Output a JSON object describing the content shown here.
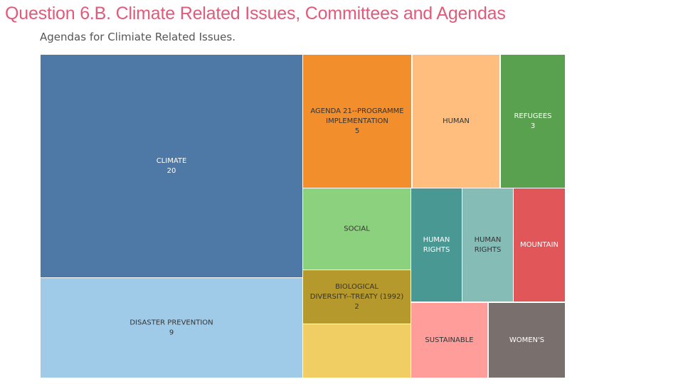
{
  "slide_title": "Question 6.B. Climate Related Issues, Committees and Agendas",
  "colors": {
    "title": "#e05a7a",
    "subtitle": "#555555"
  },
  "chart_data": {
    "type": "treemap",
    "subtitle": "Agendas for Climiate Related Issues.",
    "items": [
      {
        "label": "CLIMATE",
        "value": 20,
        "value_label": "20",
        "color": "#4e79a7",
        "text_color": "#ffffff"
      },
      {
        "label": "DISASTER PREVENTION",
        "value": 9,
        "value_label": "9",
        "color": "#a0cbe8",
        "text_color": "#333333"
      },
      {
        "label": "AGENDA 21--PROGRAMME IMPLEMENTATION",
        "value": 5,
        "value_label": "5",
        "color": "#f28e2b",
        "text_color": "#333333"
      },
      {
        "label": "HUMAN",
        "value": 4,
        "value_label": "",
        "color": "#ffbe7d",
        "text_color": "#333333"
      },
      {
        "label": "REFUGEES",
        "value": 3,
        "value_label": "3",
        "color": "#59a14f",
        "text_color": "#ffffff"
      },
      {
        "label": "SOCIAL",
        "value": 2,
        "value_label": "",
        "color": "#8cd17d",
        "text_color": "#333333"
      },
      {
        "label": "BIOLOGICAL DIVERSITY--TREATY (1992)",
        "value": 2,
        "value_label": "2",
        "color": "#b6992d",
        "text_color": "#333333"
      },
      {
        "label": "",
        "value": 1,
        "value_label": "",
        "color": "#f1ce63",
        "text_color": "#333333"
      },
      {
        "label": "HUMAN RIGHTS",
        "value": 2,
        "value_label": "",
        "color": "#499894",
        "text_color": "#ffffff"
      },
      {
        "label": "HUMAN RIGHTS",
        "value": 2,
        "value_label": "",
        "color": "#86bcb6",
        "text_color": "#333333"
      },
      {
        "label": "MOUNTAIN",
        "value": 2,
        "value_label": "",
        "color": "#e15759",
        "text_color": "#ffffff"
      },
      {
        "label": "SUSTAINABLE",
        "value": 1,
        "value_label": "",
        "color": "#ff9d9a",
        "text_color": "#333333"
      },
      {
        "label": "WOMEN'S",
        "value": 1,
        "value_label": "",
        "color": "#79706e",
        "text_color": "#ffffff"
      }
    ]
  }
}
